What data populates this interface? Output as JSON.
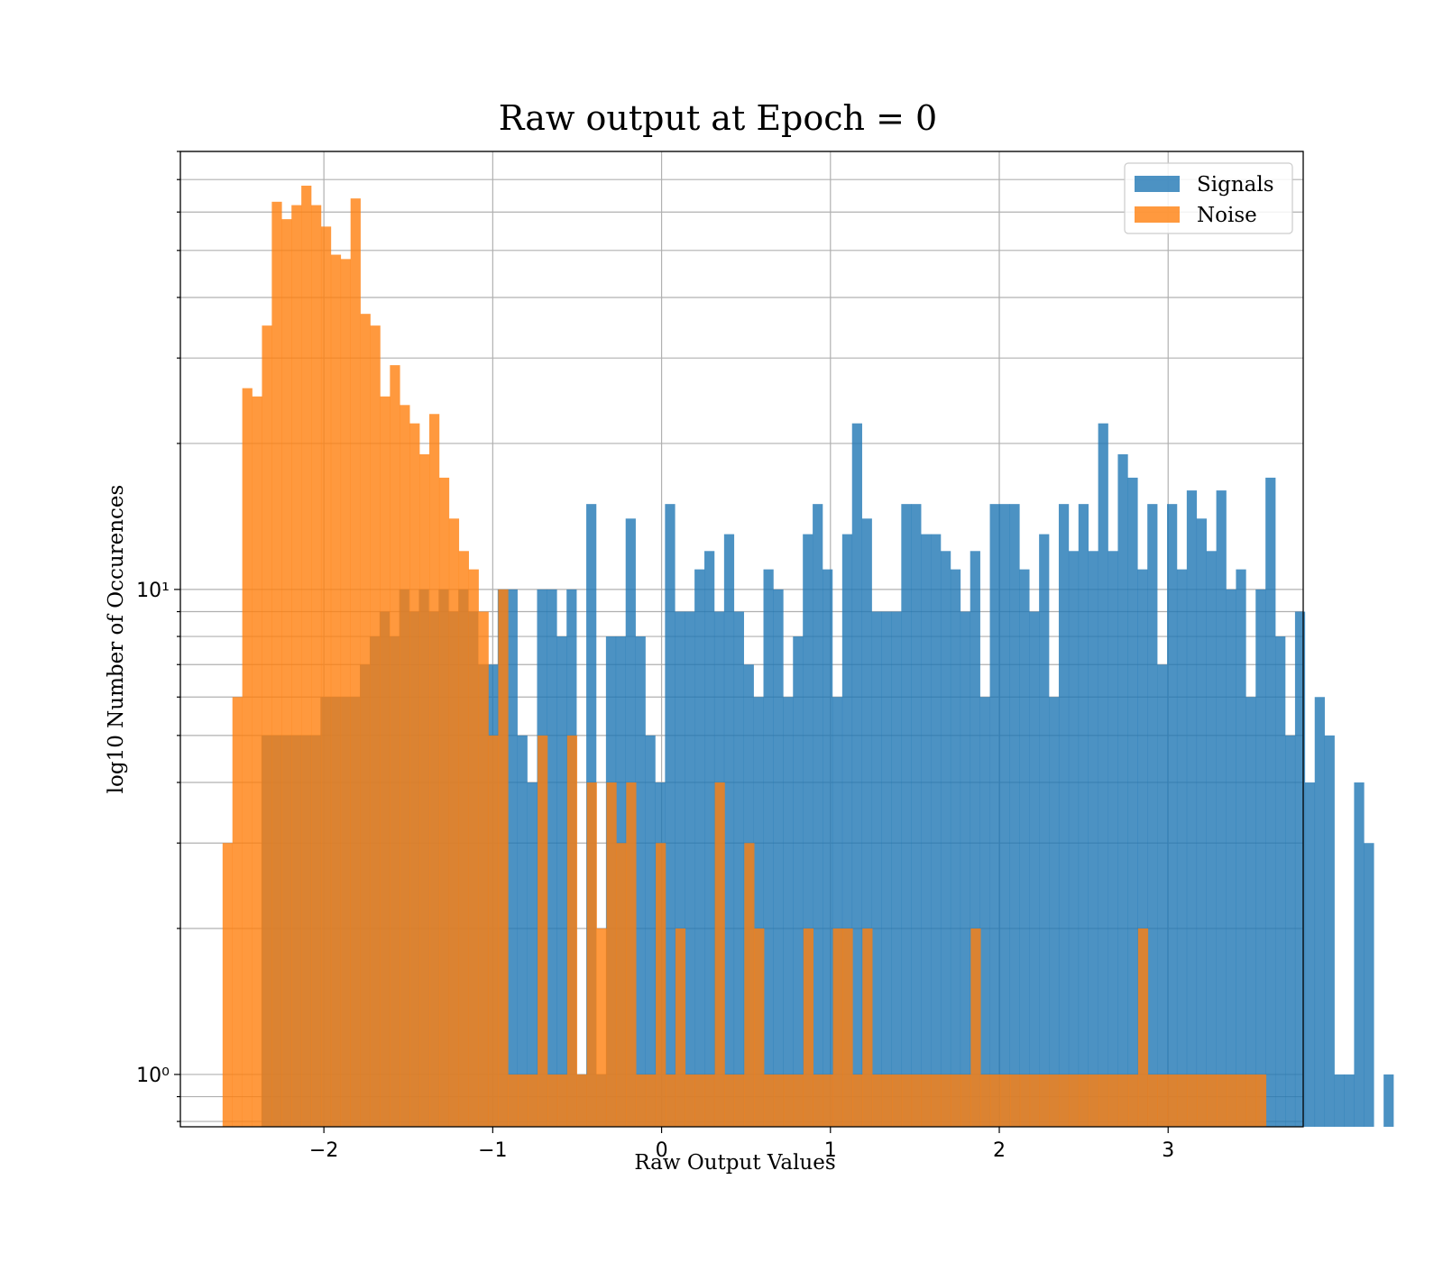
{
  "chart_data": {
    "type": "bar",
    "title": "Raw output at Epoch = 0",
    "xlabel": "Raw Output Values",
    "ylabel": "log10 Number of Occurences",
    "yscale": "log",
    "xlim": [
      -2.85,
      3.8
    ],
    "ylim": [
      0.78,
      80
    ],
    "xticks": [
      -2,
      -1,
      0,
      1,
      2,
      3
    ],
    "xtick_labels": [
      "−2",
      "−1",
      "0",
      "1",
      "2",
      "3"
    ],
    "yticks": [
      1,
      10
    ],
    "ytick_labels": [
      "10⁰",
      "10¹"
    ],
    "grid": true,
    "legend_position": "top-right",
    "series": [
      {
        "name": "Signals",
        "color": "#1f77b4",
        "opacity": 0.8,
        "bin_start": -2.37,
        "bin_width": 0.0583,
        "values": [
          5,
          5,
          5,
          5,
          5,
          5,
          6,
          6,
          6,
          6,
          7,
          8,
          9,
          8,
          10,
          9,
          10,
          9,
          10,
          9,
          10,
          9,
          7,
          7,
          10,
          10,
          5,
          4,
          10,
          10,
          8,
          10,
          1,
          15,
          1,
          8,
          8,
          14,
          8,
          5,
          4,
          15,
          9,
          9,
          11,
          12,
          9,
          13,
          9,
          7,
          6,
          11,
          10,
          6,
          8,
          13,
          15,
          11,
          6,
          13,
          22,
          14,
          9,
          9,
          9,
          15,
          15,
          13,
          13,
          12,
          11,
          9,
          12,
          6,
          15,
          15,
          15,
          11,
          9,
          13,
          6,
          15,
          12,
          15,
          12,
          22,
          12,
          19,
          17,
          11,
          15,
          7,
          15,
          11,
          16,
          14,
          12,
          16,
          10,
          11,
          6,
          10,
          17,
          8,
          5,
          9,
          4,
          6,
          5,
          1,
          1,
          4,
          3,
          0,
          1
        ]
      },
      {
        "name": "Noise",
        "color": "#ff7f0e",
        "opacity": 0.8,
        "bin_start": -2.6,
        "bin_width": 0.0583,
        "values": [
          3,
          6,
          26,
          25,
          35,
          63,
          58,
          62,
          68,
          62,
          56,
          49,
          48,
          64,
          37,
          35,
          25,
          29,
          24,
          22,
          19,
          23,
          17,
          14,
          12,
          11,
          9,
          5,
          10,
          1,
          1,
          1,
          5,
          1,
          1,
          5,
          1,
          4,
          2,
          4,
          3,
          4,
          1,
          1,
          3,
          1,
          2,
          1,
          1,
          1,
          4,
          1,
          1,
          3,
          2,
          1,
          1,
          1,
          1,
          2,
          1,
          1,
          2,
          2,
          1,
          2,
          1,
          1,
          1,
          1,
          1,
          1,
          1,
          1,
          1,
          1,
          2,
          1,
          1,
          1,
          1,
          1,
          1,
          1,
          1,
          1,
          1,
          1,
          1,
          1,
          1,
          1,
          1,
          2,
          1,
          1,
          1,
          1,
          1,
          1,
          1,
          1,
          1,
          1,
          1,
          1
        ]
      }
    ]
  }
}
